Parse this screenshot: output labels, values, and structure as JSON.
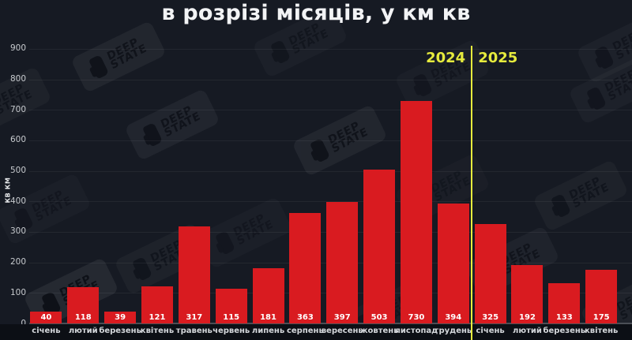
{
  "chart_data": {
    "type": "bar",
    "title": "в розрізі місяців, у км кв",
    "ylabel": "КВ КМ",
    "categories": [
      "січень",
      "лютий",
      "березень",
      "квітень",
      "травень",
      "червень",
      "липень",
      "серпень",
      "вересень",
      "жовтень",
      "листопад",
      "грудень",
      "січень",
      "лютий",
      "березень",
      "квітень"
    ],
    "values": [
      40,
      118,
      39,
      121,
      317,
      115,
      181,
      363,
      397,
      503,
      730,
      394,
      325,
      192,
      133,
      175
    ],
    "ylim": [
      0,
      900
    ],
    "yticks": [
      0,
      100,
      200,
      300,
      400,
      500,
      600,
      700,
      800,
      900
    ],
    "grid": true,
    "legend": "none",
    "bar_color": "#d91b20",
    "background": "#161a23",
    "divider": {
      "left_label": "2024",
      "right_label": "2025",
      "after_category_index": 11,
      "color": "#e6eb3d"
    }
  },
  "watermark": {
    "line1": "DEEP",
    "line2": "STATE"
  }
}
